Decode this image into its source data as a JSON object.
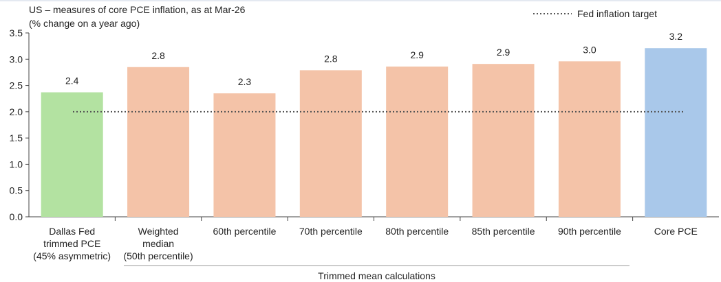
{
  "chart_data": {
    "type": "bar",
    "title": "US – measures of core PCE inflation, as at Mar-26",
    "subtitle": "(% change on a year ago)",
    "categories": [
      [
        "Dallas Fed",
        "trimmed PCE",
        "(45% asymmetric)"
      ],
      [
        "Weighted",
        "median",
        "(50th percentile)"
      ],
      [
        "60th percentile"
      ],
      [
        "70th percentile"
      ],
      [
        "80th percentile"
      ],
      [
        "85th percentile"
      ],
      [
        "90th percentile"
      ],
      [
        "Core PCE"
      ]
    ],
    "values": [
      2.37,
      2.85,
      2.35,
      2.79,
      2.86,
      2.91,
      2.96,
      3.21
    ],
    "data_labels": [
      "2.4",
      "2.8",
      "2.3",
      "2.8",
      "2.9",
      "2.9",
      "3.0",
      "3.2"
    ],
    "bar_colors": [
      "#b3e2a1",
      "#f4c3a8",
      "#f4c3a8",
      "#f4c3a8",
      "#f4c3a8",
      "#f4c3a8",
      "#f4c3a8",
      "#a9c8ea"
    ],
    "ylim": [
      0,
      3.5
    ],
    "yticks": [
      "0.0",
      "0.5",
      "1.0",
      "1.5",
      "2.0",
      "2.5",
      "3.0",
      "3.5"
    ],
    "ytick_values": [
      0,
      0.5,
      1.0,
      1.5,
      2.0,
      2.5,
      3.0,
      3.5
    ],
    "reference_line": {
      "name": "Fed inflation target",
      "value": 2.0,
      "color": "#555555",
      "style": "dotted"
    },
    "legend": {
      "label": "Fed inflation target",
      "position": "top-right"
    },
    "group_label": "Trimmed mean calculations",
    "grid": false
  }
}
